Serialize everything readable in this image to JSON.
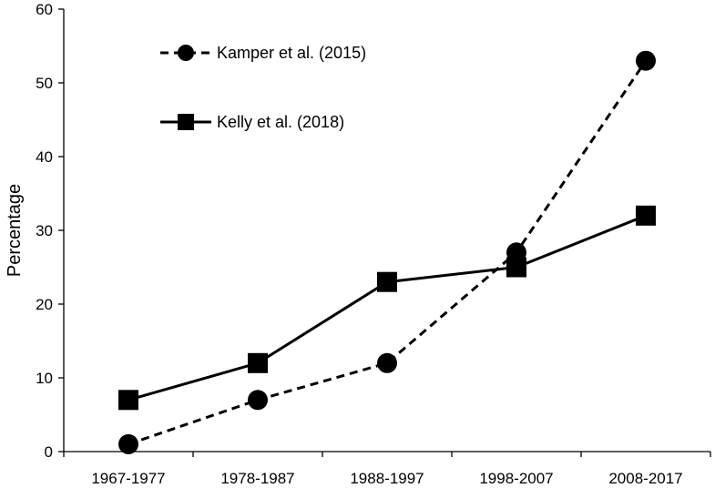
{
  "chart_data": {
    "type": "line",
    "title": "",
    "xlabel": "",
    "ylabel": "Percentage",
    "categories": [
      "1967-1977",
      "1978-1987",
      "1988-1997",
      "1998-2007",
      "2008-2017"
    ],
    "ylim": [
      0,
      60
    ],
    "yticks": [
      0,
      10,
      20,
      30,
      40,
      50,
      60
    ],
    "grid": false,
    "legend_position": "top-left",
    "series": [
      {
        "name": "Kamper et al.  (2015)",
        "values": [
          1,
          7,
          12,
          27,
          53
        ],
        "line_style": "dashed",
        "marker": "circle",
        "color": "#000000"
      },
      {
        "name": "Kelly et al. (2018)",
        "values": [
          7,
          12,
          23,
          25,
          32
        ],
        "line_style": "solid",
        "marker": "square",
        "color": "#000000"
      }
    ]
  }
}
